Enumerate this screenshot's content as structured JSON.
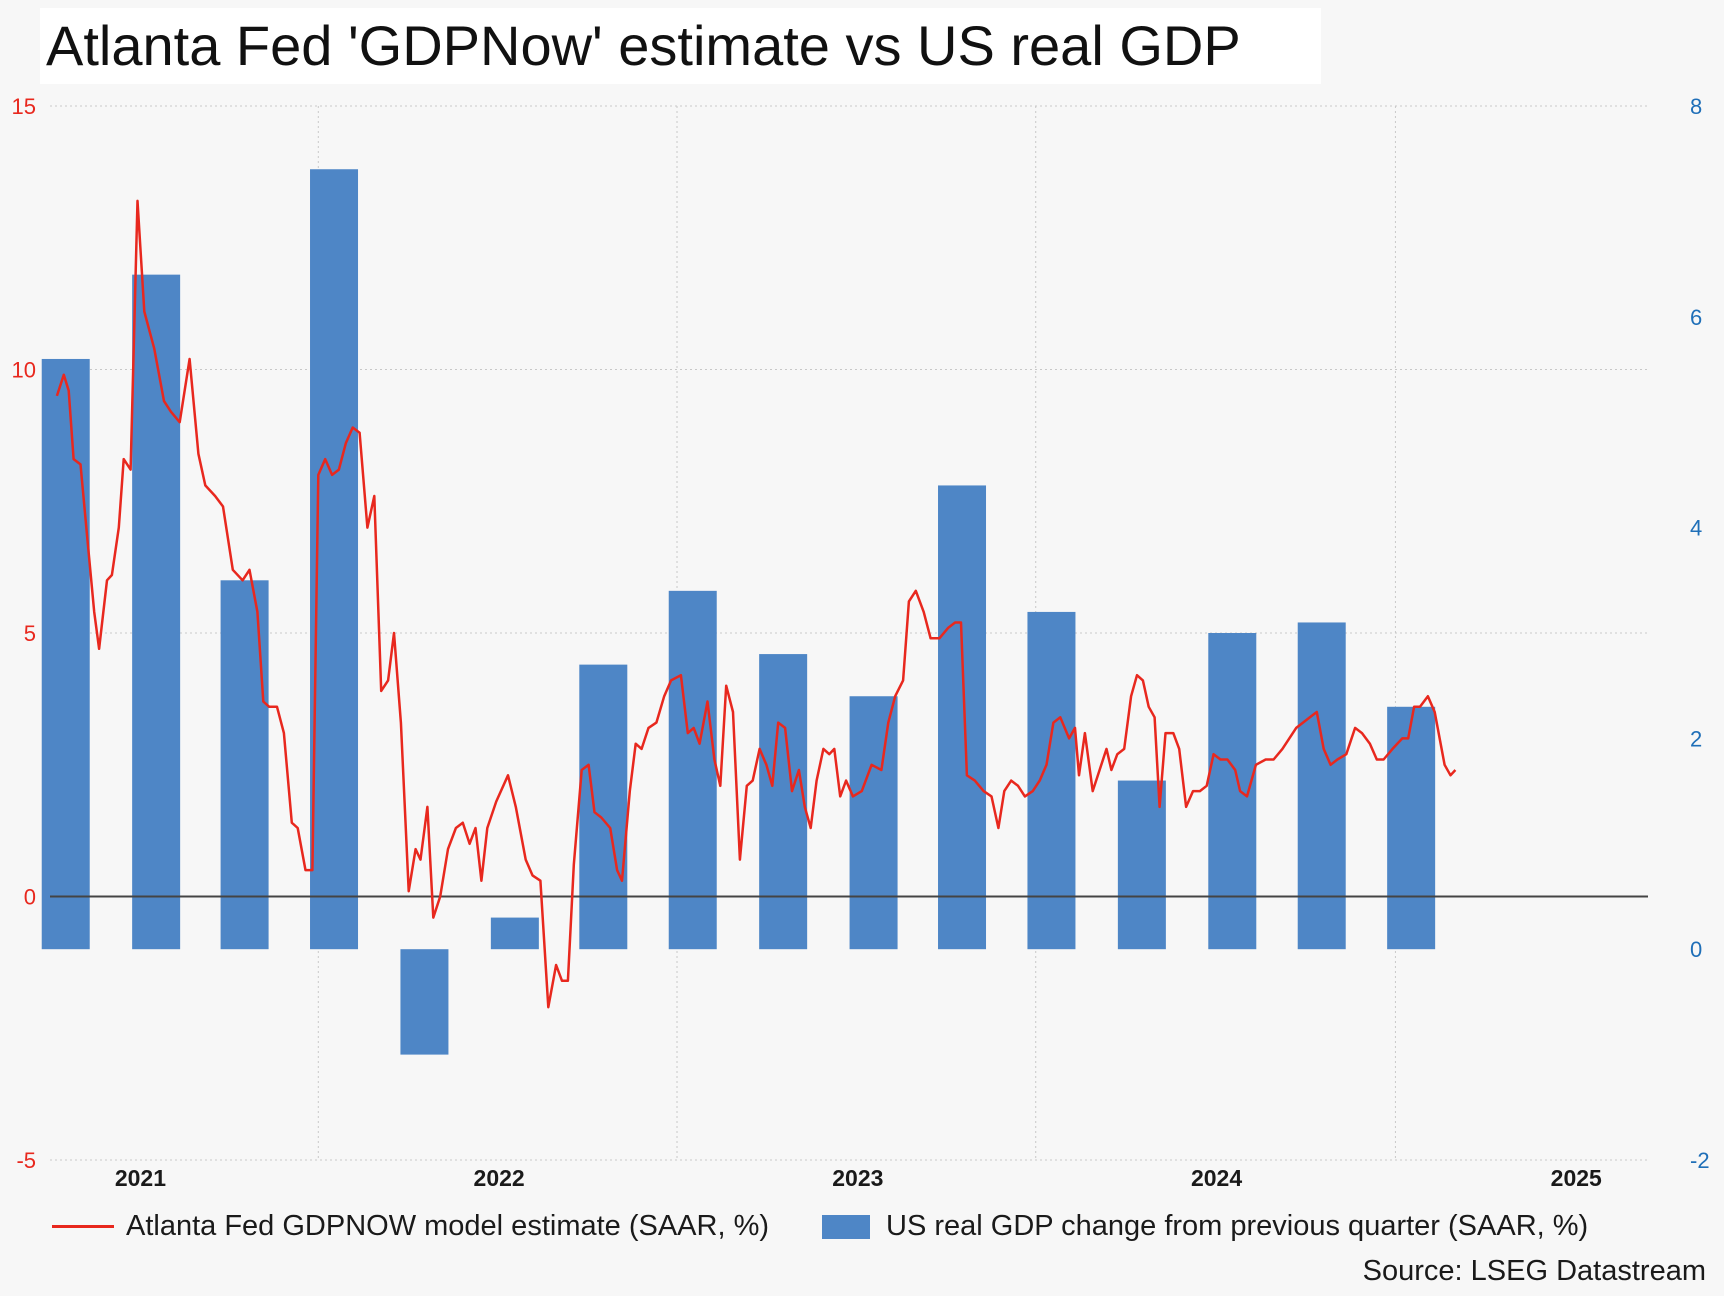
{
  "title": "Atlanta Fed 'GDPNow' estimate vs US  real GDP",
  "source": "Source: LSEG Datastream",
  "colors": {
    "line": "#e8281e",
    "bar": "#4e86c6",
    "left_axis": "#e8281e",
    "right_axis": "#1f6fb8",
    "zero_line": "#444444",
    "grid": "#c8c8c8"
  },
  "chart_data": {
    "type": "bar+line",
    "title": "Atlanta Fed 'GDPNow' estimate vs US  real GDP",
    "x_tick_labels": [
      "2021",
      "2022",
      "2023",
      "2024",
      "2025"
    ],
    "x_range": [
      "2020-10-01",
      "2025-03-15"
    ],
    "x_tick_dates": [
      "2021-01-01",
      "2022-01-01",
      "2023-01-01",
      "2024-01-01",
      "2025-01-01"
    ],
    "y_left": {
      "ticks": [
        15,
        10,
        5,
        0,
        -5
      ],
      "range": [
        -5,
        15
      ],
      "color": "#e8281e"
    },
    "y_right": {
      "ticks": [
        8,
        6,
        4,
        2,
        0,
        -2
      ],
      "range": [
        -2,
        8
      ],
      "color": "#1f6fb8"
    },
    "grid": true,
    "legend_position": "bottom",
    "series": [
      {
        "name": "Atlanta Fed GDPNOW model estimate (SAAR, %)",
        "type": "line",
        "axis": "left",
        "points": [
          [
            "2020-10-08",
            9.5
          ],
          [
            "2020-10-15",
            9.9
          ],
          [
            "2020-10-20",
            9.6
          ],
          [
            "2020-10-25",
            8.3
          ],
          [
            "2020-11-01",
            8.2
          ],
          [
            "2020-11-08",
            6.8
          ],
          [
            "2020-11-15",
            5.4
          ],
          [
            "2020-11-20",
            4.7
          ],
          [
            "2020-11-28",
            6.0
          ],
          [
            "2020-12-03",
            6.1
          ],
          [
            "2020-12-10",
            7.0
          ],
          [
            "2020-12-15",
            8.3
          ],
          [
            "2020-12-22",
            8.1
          ],
          [
            "2020-12-29",
            13.2
          ],
          [
            "2021-01-05",
            11.1
          ],
          [
            "2021-01-15",
            10.4
          ],
          [
            "2021-01-25",
            9.4
          ],
          [
            "2021-02-01",
            9.2
          ],
          [
            "2021-02-10",
            9.0
          ],
          [
            "2021-02-20",
            10.2
          ],
          [
            "2021-03-01",
            8.4
          ],
          [
            "2021-03-08",
            7.8
          ],
          [
            "2021-03-18",
            7.6
          ],
          [
            "2021-03-26",
            7.4
          ],
          [
            "2021-04-05",
            6.2
          ],
          [
            "2021-04-15",
            6.0
          ],
          [
            "2021-04-22",
            6.2
          ],
          [
            "2021-04-30",
            5.4
          ],
          [
            "2021-05-06",
            3.7
          ],
          [
            "2021-05-12",
            3.6
          ],
          [
            "2021-05-20",
            3.6
          ],
          [
            "2021-05-27",
            3.1
          ],
          [
            "2021-06-04",
            1.4
          ],
          [
            "2021-06-10",
            1.3
          ],
          [
            "2021-06-18",
            0.5
          ],
          [
            "2021-06-25",
            0.5
          ],
          [
            "2021-07-01",
            8.0
          ],
          [
            "2021-07-08",
            8.3
          ],
          [
            "2021-07-15",
            8.0
          ],
          [
            "2021-07-22",
            8.1
          ],
          [
            "2021-07-29",
            8.6
          ],
          [
            "2021-08-05",
            8.9
          ],
          [
            "2021-08-12",
            8.8
          ],
          [
            "2021-08-20",
            7.0
          ],
          [
            "2021-08-27",
            7.6
          ],
          [
            "2021-09-03",
            3.9
          ],
          [
            "2021-09-10",
            4.1
          ],
          [
            "2021-09-16",
            5.0
          ],
          [
            "2021-09-23",
            3.3
          ],
          [
            "2021-10-01",
            0.1
          ],
          [
            "2021-10-08",
            0.9
          ],
          [
            "2021-10-13",
            0.7
          ],
          [
            "2021-10-20",
            1.7
          ],
          [
            "2021-10-26",
            -0.4
          ],
          [
            "2021-11-02",
            0.0
          ],
          [
            "2021-11-10",
            0.9
          ],
          [
            "2021-11-18",
            1.3
          ],
          [
            "2021-11-25",
            1.4
          ],
          [
            "2021-12-02",
            1.0
          ],
          [
            "2021-12-08",
            1.3
          ],
          [
            "2021-12-14",
            0.3
          ],
          [
            "2021-12-20",
            1.3
          ],
          [
            "2021-12-29",
            1.8
          ],
          [
            "2022-01-10",
            2.3
          ],
          [
            "2022-01-18",
            1.7
          ],
          [
            "2022-01-28",
            0.7
          ],
          [
            "2022-02-04",
            0.4
          ],
          [
            "2022-02-12",
            0.3
          ],
          [
            "2022-02-20",
            -2.1
          ],
          [
            "2022-02-28",
            -1.3
          ],
          [
            "2022-03-06",
            -1.6
          ],
          [
            "2022-03-12",
            -1.6
          ],
          [
            "2022-03-18",
            0.6
          ],
          [
            "2022-03-26",
            2.4
          ],
          [
            "2022-04-02",
            2.5
          ],
          [
            "2022-04-08",
            1.6
          ],
          [
            "2022-04-15",
            1.5
          ],
          [
            "2022-04-24",
            1.3
          ],
          [
            "2022-05-01",
            0.5
          ],
          [
            "2022-05-06",
            0.3
          ],
          [
            "2022-05-14",
            2.0
          ],
          [
            "2022-05-20",
            2.9
          ],
          [
            "2022-05-26",
            2.8
          ],
          [
            "2022-06-02",
            3.2
          ],
          [
            "2022-06-10",
            3.3
          ],
          [
            "2022-06-18",
            3.8
          ],
          [
            "2022-06-25",
            4.1
          ],
          [
            "2022-07-05",
            4.2
          ],
          [
            "2022-07-12",
            3.1
          ],
          [
            "2022-07-18",
            3.2
          ],
          [
            "2022-07-24",
            2.9
          ],
          [
            "2022-08-01",
            3.7
          ],
          [
            "2022-08-08",
            2.6
          ],
          [
            "2022-08-14",
            2.1
          ],
          [
            "2022-08-20",
            4.0
          ],
          [
            "2022-08-27",
            3.5
          ],
          [
            "2022-09-03",
            0.7
          ],
          [
            "2022-09-10",
            2.1
          ],
          [
            "2022-09-16",
            2.2
          ],
          [
            "2022-09-23",
            2.8
          ],
          [
            "2022-09-30",
            2.5
          ],
          [
            "2022-10-06",
            2.1
          ],
          [
            "2022-10-12",
            3.3
          ],
          [
            "2022-10-19",
            3.2
          ],
          [
            "2022-10-26",
            2.0
          ],
          [
            "2022-11-02",
            2.4
          ],
          [
            "2022-11-08",
            1.7
          ],
          [
            "2022-11-14",
            1.3
          ],
          [
            "2022-11-20",
            2.2
          ],
          [
            "2022-11-27",
            2.8
          ],
          [
            "2022-12-03",
            2.7
          ],
          [
            "2022-12-08",
            2.8
          ],
          [
            "2022-12-14",
            1.9
          ],
          [
            "2022-12-20",
            2.2
          ],
          [
            "2022-12-27",
            1.9
          ],
          [
            "2023-01-05",
            2.0
          ],
          [
            "2023-01-15",
            2.5
          ],
          [
            "2023-01-25",
            2.4
          ],
          [
            "2023-02-01",
            3.3
          ],
          [
            "2023-02-08",
            3.8
          ],
          [
            "2023-02-16",
            4.1
          ],
          [
            "2023-02-22",
            5.6
          ],
          [
            "2023-03-01",
            5.8
          ],
          [
            "2023-03-09",
            5.4
          ],
          [
            "2023-03-16",
            4.9
          ],
          [
            "2023-03-25",
            4.9
          ],
          [
            "2023-04-03",
            5.1
          ],
          [
            "2023-04-10",
            5.2
          ],
          [
            "2023-04-16",
            5.2
          ],
          [
            "2023-04-22",
            2.3
          ],
          [
            "2023-04-30",
            2.2
          ],
          [
            "2023-05-09",
            2.0
          ],
          [
            "2023-05-17",
            1.9
          ],
          [
            "2023-05-24",
            1.3
          ],
          [
            "2023-05-30",
            2.0
          ],
          [
            "2023-06-06",
            2.2
          ],
          [
            "2023-06-13",
            2.1
          ],
          [
            "2023-06-20",
            1.9
          ],
          [
            "2023-06-28",
            2.0
          ],
          [
            "2023-07-05",
            2.2
          ],
          [
            "2023-07-12",
            2.5
          ],
          [
            "2023-07-19",
            3.3
          ],
          [
            "2023-07-26",
            3.4
          ],
          [
            "2023-08-04",
            3.0
          ],
          [
            "2023-08-10",
            3.2
          ],
          [
            "2023-08-14",
            2.3
          ],
          [
            "2023-08-20",
            3.1
          ],
          [
            "2023-08-28",
            2.0
          ],
          [
            "2023-09-04",
            2.4
          ],
          [
            "2023-09-11",
            2.8
          ],
          [
            "2023-09-16",
            2.4
          ],
          [
            "2023-09-22",
            2.7
          ],
          [
            "2023-09-29",
            2.8
          ],
          [
            "2023-10-06",
            3.8
          ],
          [
            "2023-10-12",
            4.2
          ],
          [
            "2023-10-18",
            4.1
          ],
          [
            "2023-10-24",
            3.6
          ],
          [
            "2023-10-30",
            3.4
          ],
          [
            "2023-11-04",
            1.7
          ],
          [
            "2023-11-10",
            3.1
          ],
          [
            "2023-11-18",
            3.1
          ],
          [
            "2023-11-24",
            2.8
          ],
          [
            "2023-12-01",
            1.7
          ],
          [
            "2023-12-08",
            2.0
          ],
          [
            "2023-12-15",
            2.0
          ],
          [
            "2023-12-22",
            2.1
          ],
          [
            "2023-12-29",
            2.7
          ],
          [
            "2024-01-05",
            2.6
          ],
          [
            "2024-01-12",
            2.6
          ],
          [
            "2024-01-20",
            2.4
          ],
          [
            "2024-01-25",
            2.0
          ],
          [
            "2024-02-01",
            1.9
          ],
          [
            "2024-02-10",
            2.5
          ],
          [
            "2024-02-20",
            2.6
          ],
          [
            "2024-02-28",
            2.6
          ],
          [
            "2024-03-08",
            2.8
          ],
          [
            "2024-03-15",
            3.0
          ],
          [
            "2024-03-22",
            3.2
          ],
          [
            "2024-03-29",
            3.3
          ],
          [
            "2024-04-05",
            3.4
          ],
          [
            "2024-04-12",
            3.5
          ],
          [
            "2024-04-19",
            2.8
          ],
          [
            "2024-04-26",
            2.5
          ],
          [
            "2024-05-03",
            2.6
          ],
          [
            "2024-05-12",
            2.7
          ],
          [
            "2024-05-21",
            3.2
          ],
          [
            "2024-05-28",
            3.1
          ],
          [
            "2024-06-05",
            2.9
          ],
          [
            "2024-06-12",
            2.6
          ],
          [
            "2024-06-19",
            2.6
          ],
          [
            "2024-06-28",
            2.8
          ],
          [
            "2024-07-08",
            3.0
          ],
          [
            "2024-07-14",
            3.0
          ],
          [
            "2024-07-20",
            3.6
          ],
          [
            "2024-07-26",
            3.6
          ],
          [
            "2024-08-03",
            3.8
          ],
          [
            "2024-08-10",
            3.5
          ],
          [
            "2024-08-20",
            2.5
          ],
          [
            "2024-08-26",
            2.3
          ],
          [
            "2024-08-31",
            2.4
          ]
        ]
      },
      {
        "name": "US real GDP change from previous quarter (SAAR, %)",
        "type": "bar",
        "axis": "right",
        "points": [
          [
            "2020-10-17",
            5.6
          ],
          [
            "2021-01-17",
            6.4
          ],
          [
            "2021-04-17",
            3.5
          ],
          [
            "2021-07-17",
            7.4
          ],
          [
            "2021-10-17",
            -1.0
          ],
          [
            "2022-01-17",
            0.3
          ],
          [
            "2022-04-17",
            2.7
          ],
          [
            "2022-07-17",
            3.4
          ],
          [
            "2022-10-17",
            2.8
          ],
          [
            "2023-01-17",
            2.4
          ],
          [
            "2023-04-17",
            4.4
          ],
          [
            "2023-07-17",
            3.2
          ],
          [
            "2023-10-17",
            1.6
          ],
          [
            "2024-01-17",
            3.0
          ],
          [
            "2024-04-17",
            3.1
          ],
          [
            "2024-07-17",
            2.3
          ]
        ]
      }
    ]
  },
  "legend": {
    "line_label": "Atlanta Fed GDPNOW model estimate (SAAR, %)",
    "bar_label": "US real GDP change from previous quarter (SAAR, %)"
  }
}
